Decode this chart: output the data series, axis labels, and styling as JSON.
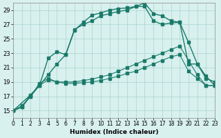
{
  "xlabel": "Humidex (Indice chaleur)",
  "background_color": "#d8f0ee",
  "grid_color": "#aad4cc",
  "line_color": "#1a7a6a",
  "xlim": [
    0,
    23
  ],
  "ylim": [
    14,
    30
  ],
  "xticks": [
    0,
    1,
    2,
    3,
    4,
    5,
    6,
    7,
    8,
    9,
    10,
    11,
    12,
    13,
    14,
    15,
    16,
    17,
    18,
    19,
    20,
    21,
    22,
    23
  ],
  "yticks": [
    15,
    17,
    19,
    21,
    23,
    25,
    27,
    29
  ],
  "series1_x": [
    0,
    1,
    2,
    3,
    4,
    5,
    6,
    7,
    8,
    9,
    10,
    11,
    12,
    13,
    14,
    15,
    16,
    17,
    18,
    19,
    20,
    21,
    22,
    23
  ],
  "series1_y": [
    15,
    15.5,
    17.2,
    18.5,
    20.0,
    21.5,
    22.8,
    26.2,
    27.3,
    28.3,
    28.6,
    29.0,
    29.2,
    29.3,
    29.5,
    30.0,
    28.5,
    28.2,
    27.5,
    27.3,
    21.5,
    21.5,
    19.8,
    18.5
  ],
  "series2_x": [
    0,
    1,
    2,
    3,
    4,
    5,
    6,
    7,
    8,
    9,
    10,
    11,
    12,
    13,
    14,
    15,
    16,
    17,
    18,
    19,
    20,
    21,
    22,
    23
  ],
  "series2_y": [
    15,
    15.7,
    17.0,
    18.8,
    19.5,
    19.0,
    19.0,
    19.0,
    19.2,
    19.4,
    19.7,
    20.0,
    20.5,
    21.0,
    21.5,
    22.0,
    22.5,
    23.0,
    23.5,
    24.0,
    22.0,
    20.0,
    18.5,
    18.5
  ],
  "series3_x": [
    0,
    1,
    2,
    3,
    4,
    5,
    6,
    7,
    8,
    9,
    10,
    11,
    12,
    13,
    14,
    15,
    16,
    17,
    18,
    19,
    20,
    21,
    22,
    23
  ],
  "series3_y": [
    15,
    15.5,
    17.0,
    18.5,
    19.3,
    19.0,
    18.8,
    18.8,
    18.9,
    19.0,
    19.2,
    19.5,
    19.8,
    20.2,
    20.5,
    21.0,
    21.5,
    22.0,
    22.5,
    22.8,
    20.5,
    19.5,
    18.5,
    18.5
  ],
  "series4_x": [
    0,
    2,
    3,
    4,
    5,
    6,
    7,
    8,
    9,
    10,
    11,
    12,
    13,
    14,
    15,
    16,
    17,
    18,
    19,
    20,
    21,
    22,
    23
  ],
  "series4_y": [
    15,
    17.2,
    18.5,
    22.3,
    23.2,
    22.8,
    26.3,
    27.0,
    27.5,
    28.2,
    28.5,
    28.8,
    29.0,
    29.5,
    29.5,
    27.5,
    27.0,
    27.2,
    27.3,
    24.5,
    21.5,
    19.5,
    19.0
  ]
}
